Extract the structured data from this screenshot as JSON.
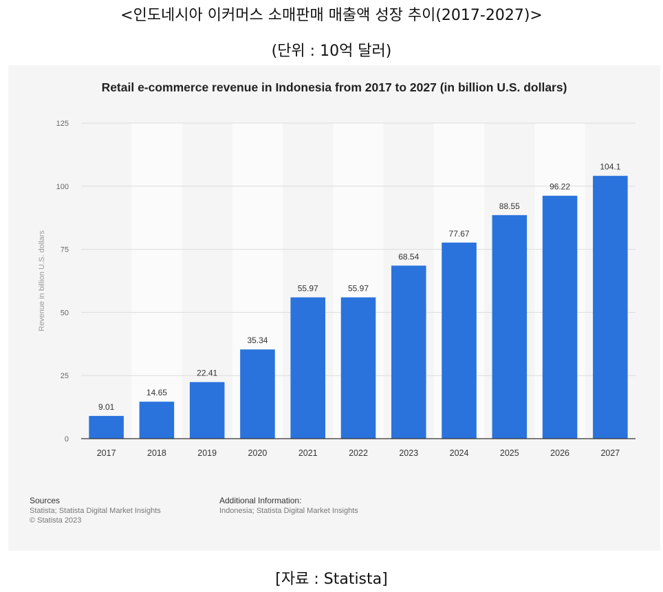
{
  "header": {
    "title_ko": "<인도네시아 이커머스 소매판매 매출액 성장 추이(2017-2027)>",
    "unit_ko": "(단위 : 10억 달러)"
  },
  "footer_ko": "[자료 : Statista]",
  "panel": {
    "sources_heading": "Sources",
    "sources_lines": [
      "Statista; Statista Digital Market Insights",
      "© Statista 2023"
    ],
    "additional_heading": "Additional Information:",
    "additional_lines": [
      "Indonesia; Statista Digital Market Insights"
    ]
  },
  "colors": {
    "bar": "#2a73dc",
    "panel_bg": "#f5f5f5",
    "band": "#fbfbfb",
    "gridline": "#dcdcdc",
    "axis": "#333333",
    "tick_text": "#666666",
    "label_text": "#333333",
    "ylabel_text": "#999999"
  },
  "chart_data": {
    "type": "bar",
    "title": "Retail e-commerce revenue in Indonesia from 2017 to 2027 (in billion U.S. dollars)",
    "xlabel": "",
    "ylabel": "Revenue in billion U.S. dollars",
    "categories": [
      "2017",
      "2018",
      "2019",
      "2020",
      "2021",
      "2022",
      "2023",
      "2024",
      "2025",
      "2026",
      "2027"
    ],
    "values": [
      9.01,
      14.65,
      22.41,
      35.34,
      55.97,
      55.97,
      68.54,
      77.67,
      88.55,
      96.22,
      104.1
    ],
    "data_labels": [
      "9.01",
      "14.65",
      "22.41",
      "35.34",
      "55.97",
      "55.97",
      "68.54",
      "77.67",
      "88.55",
      "96.22",
      "104.1"
    ],
    "ylim": [
      0,
      125
    ],
    "yticks": [
      0,
      25,
      50,
      75,
      100,
      125
    ],
    "grid": true,
    "legend": "none"
  }
}
